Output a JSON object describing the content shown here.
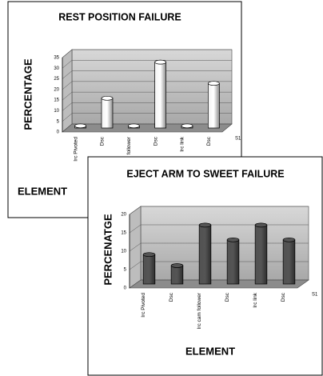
{
  "chart_data": [
    {
      "type": "bar",
      "title": "REST POSITION FAILURE",
      "y_label": "PERCENTAGE",
      "x_label": "ELEMENT",
      "categories": [
        "Irc Pivoted",
        "Dsc",
        "Irc cam follower",
        "Dsc",
        "Irc link",
        "Dsc"
      ],
      "series": [
        {
          "name": "S1",
          "color": "#ffffff",
          "values": [
            1,
            14,
            1,
            31,
            1,
            21
          ]
        }
      ],
      "ylim": [
        0,
        35
      ],
      "yticks": [
        0,
        5,
        10,
        15,
        20,
        25,
        30,
        35
      ],
      "grid": true
    },
    {
      "type": "bar",
      "title": "EJECT ARM TO SWEET FAILURE",
      "y_label": "PERCENATGE",
      "x_label": "ELEMENT",
      "categories": [
        "Irc Pivoted",
        "Dsc",
        "Irc cam follower",
        "Dsc",
        "Irc link",
        "Dsc"
      ],
      "series": [
        {
          "name": "S1",
          "color": "#555555",
          "values": [
            8,
            5,
            16,
            12,
            16,
            12
          ]
        }
      ],
      "ylim": [
        0,
        20
      ],
      "yticks": [
        0,
        5,
        10,
        15,
        20
      ],
      "grid": true
    }
  ]
}
